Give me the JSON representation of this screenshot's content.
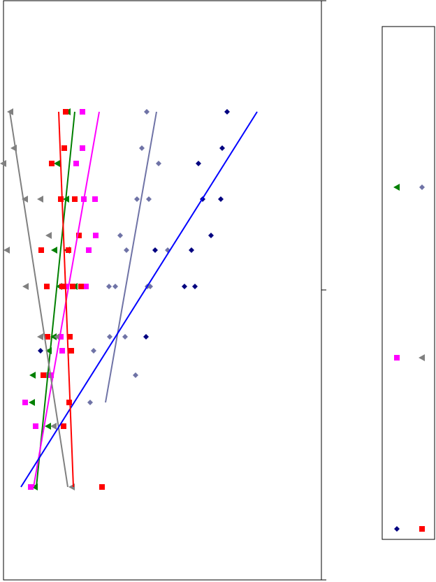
{
  "chart_data": {
    "type": "scatter",
    "xlim": [
      0,
      455
    ],
    "ylim": [
      0,
      829
    ],
    "series": [
      {
        "color": "#008000",
        "marker": "triangle-left",
        "x": [
          92,
          77,
          90,
          73,
          91,
          80,
          102,
          72,
          65,
          42,
          41,
          64,
          45
        ],
        "y": [
          670,
          596,
          545,
          472,
          472,
          420,
          420,
          348,
          328,
          293,
          254,
          220,
          133
        ],
        "trend_x": [
          47,
          102
        ],
        "trend_y": [
          133,
          670
        ]
      },
      {
        "color": "#6f73a6",
        "marker": "diamond",
        "x": [
          205,
          198,
          222,
          191,
          208,
          167,
          176,
          235,
          151,
          160,
          206,
          210,
          152,
          174,
          129,
          189,
          124
        ],
        "y": [
          670,
          618,
          596,
          545,
          545,
          493,
          472,
          472,
          420,
          420,
          420,
          420,
          348,
          348,
          328,
          293,
          254
        ],
        "trend_x": [
          146,
          219
        ],
        "trend_y": [
          254,
          670
        ]
      },
      {
        "color": "#ff00ff",
        "marker": "square",
        "x": [
          113,
          113,
          104,
          115,
          131,
          132,
          122,
          90,
          118,
          82,
          84,
          68,
          31,
          46,
          39
        ],
        "y": [
          670,
          618,
          596,
          545,
          545,
          493,
          472,
          420,
          420,
          348,
          328,
          293,
          254,
          220,
          133
        ],
        "trend_x": [
          43,
          137
        ],
        "trend_y": [
          133,
          670
        ]
      },
      {
        "color": "#808080",
        "marker": "triangle-left",
        "x": [
          10,
          15,
          0,
          31,
          53,
          65,
          5,
          32,
          53,
          77,
          59,
          72,
          98
        ],
        "y": [
          670,
          618,
          596,
          545,
          545,
          493,
          472,
          420,
          348,
          348,
          293,
          220,
          133
        ],
        "trend_x": [
          92,
          9
        ],
        "trend_y": [
          133,
          670
        ]
      },
      {
        "color": "#000080",
        "marker": "diamond",
        "x": [
          320,
          313,
          279,
          285,
          311,
          297,
          217,
          269,
          259,
          274,
          204,
          53
        ],
        "y": [
          670,
          618,
          596,
          545,
          545,
          493,
          472,
          472,
          420,
          420,
          348,
          328
        ],
        "trend_x": [
          25,
          363
        ],
        "trend_y": [
          133,
          670
        ],
        "trend_color": "#0000ff"
      },
      {
        "color": "#ff0000",
        "marker": "square",
        "x": [
          89,
          87,
          69,
          82,
          102,
          108,
          93,
          54,
          62,
          84,
          99,
          111,
          63,
          95,
          97,
          57,
          94,
          86,
          141
        ],
        "y": [
          670,
          618,
          596,
          545,
          545,
          493,
          472,
          472,
          420,
          420,
          420,
          420,
          348,
          348,
          328,
          293,
          254,
          220,
          133
        ],
        "trend_x": [
          100,
          79
        ],
        "trend_y": [
          133,
          670
        ]
      }
    ]
  }
}
